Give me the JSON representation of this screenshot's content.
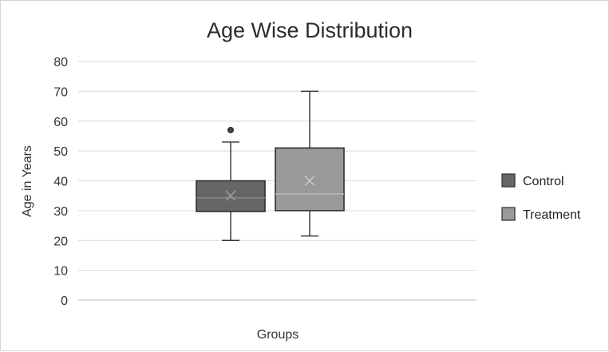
{
  "chart_data": {
    "type": "box",
    "title": "Age Wise Distribution",
    "xlabel": "Groups",
    "ylabel": "Age in Years",
    "ylim": [
      0,
      80
    ],
    "yticks": [
      0,
      10,
      20,
      30,
      40,
      50,
      60,
      70,
      80
    ],
    "grid": true,
    "legend_position": "right",
    "series": [
      {
        "name": "Control",
        "color": "#666666",
        "min": 20,
        "q1": 29.7,
        "median": 34.3,
        "q3": 40,
        "max": 53,
        "mean": 35,
        "outliers": [
          57
        ]
      },
      {
        "name": "Treatment",
        "color": "#999999",
        "min": 21.5,
        "q1": 30,
        "median": 35.6,
        "q3": 51,
        "max": 70,
        "mean": 40,
        "outliers": []
      }
    ]
  }
}
